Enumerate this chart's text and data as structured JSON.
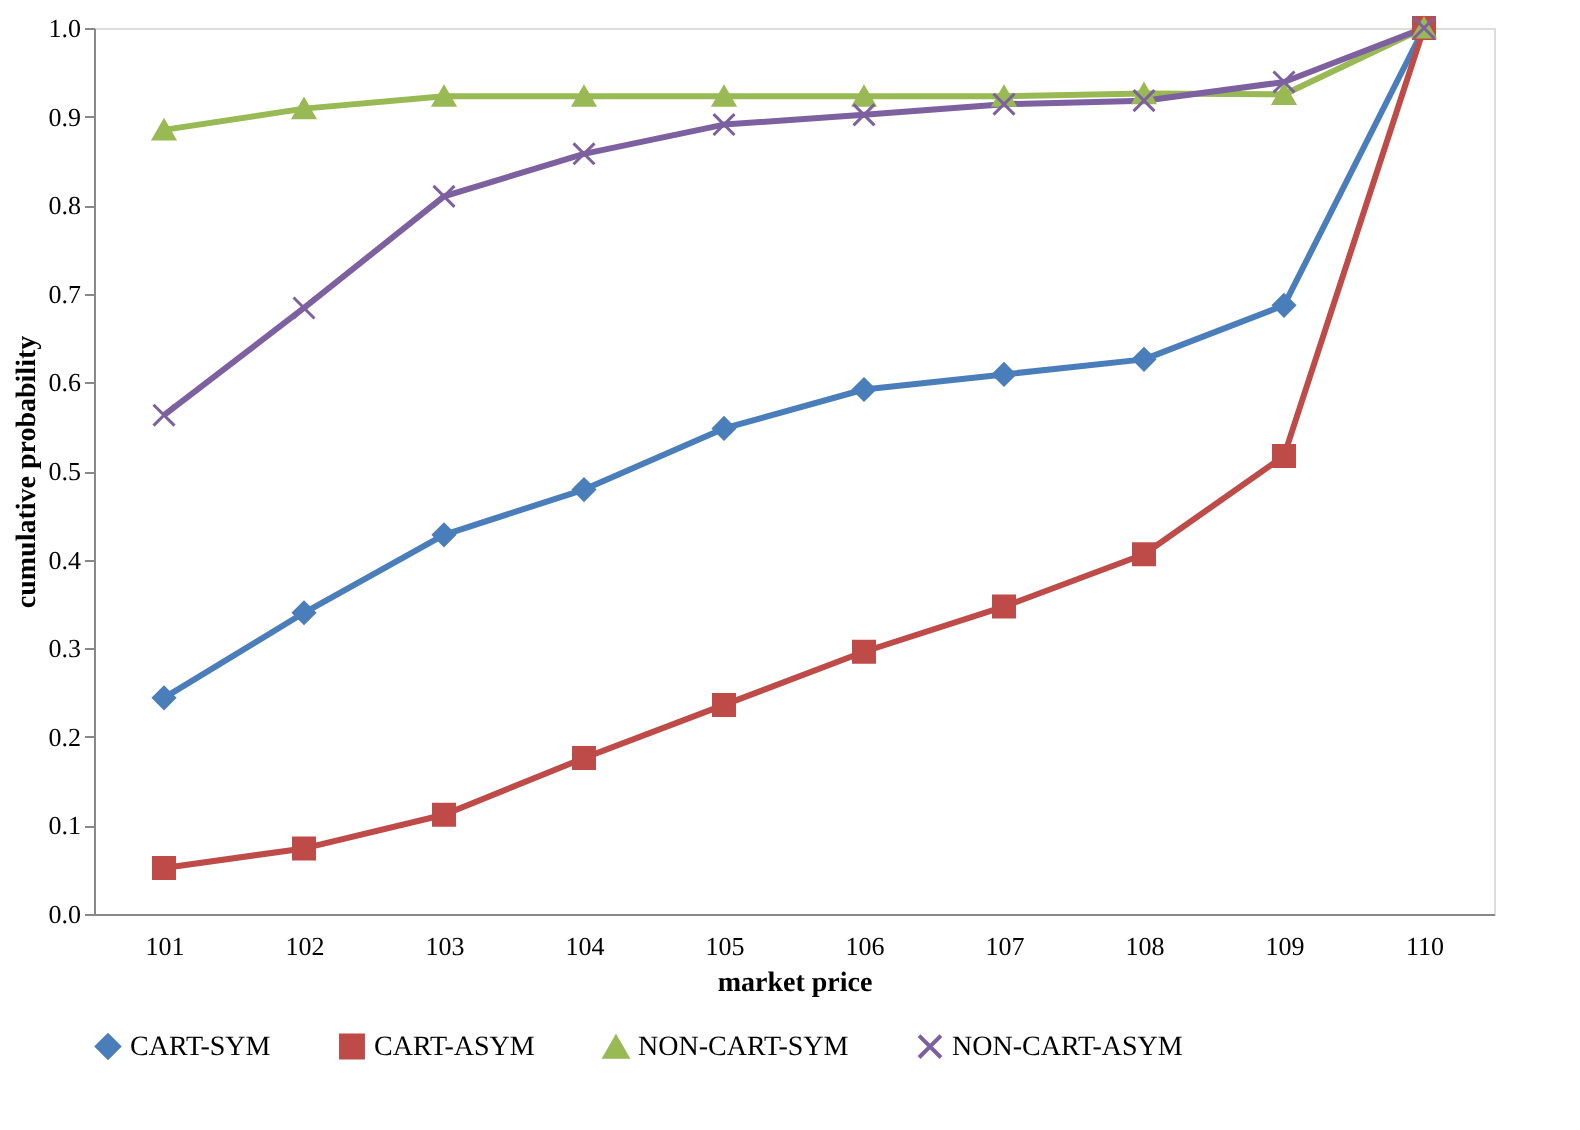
{
  "chart_data": {
    "type": "line",
    "xlabel": "market price",
    "ylabel": "cumulative probability",
    "categories": [
      "101",
      "102",
      "103",
      "104",
      "105",
      "106",
      "107",
      "108",
      "109",
      "110"
    ],
    "series": [
      {
        "name": "CART-SYM",
        "color": "#4a7ebb",
        "marker": "diamond",
        "values": [
          0.244,
          0.34,
          0.428,
          0.479,
          0.548,
          0.592,
          0.609,
          0.626,
          0.687,
          1.0
        ]
      },
      {
        "name": "CART-ASYM",
        "color": "#be4b48",
        "marker": "square",
        "values": [
          0.052,
          0.074,
          0.112,
          0.176,
          0.236,
          0.296,
          0.347,
          0.406,
          0.517,
          1.0
        ]
      },
      {
        "name": "NON-CART-SYM",
        "color": "#98b954",
        "marker": "triangle",
        "values": [
          0.885,
          0.909,
          0.923,
          0.923,
          0.923,
          0.923,
          0.923,
          0.926,
          0.925,
          1.0
        ]
      },
      {
        "name": "NON-CART-ASYM",
        "color": "#7d60a0",
        "marker": "cross",
        "values": [
          0.563,
          0.684,
          0.81,
          0.858,
          0.891,
          0.902,
          0.914,
          0.918,
          0.939,
          1.0
        ]
      }
    ],
    "ylim": [
      0,
      1
    ],
    "yticks": [
      {
        "value": 0,
        "label": "0.0"
      },
      {
        "value": 0.1,
        "label": "0.1"
      },
      {
        "value": 0.2,
        "label": "0.2"
      },
      {
        "value": 0.3,
        "label": "0.3"
      },
      {
        "value": 0.4,
        "label": "0.4"
      },
      {
        "value": 0.5,
        "label": "0.5"
      },
      {
        "value": 0.6,
        "label": "0.6"
      },
      {
        "value": 0.7,
        "label": "0.7"
      },
      {
        "value": 0.8,
        "label": "0.8"
      },
      {
        "value": 0.9,
        "label": "0.9"
      },
      {
        "value": 1,
        "label": "1.0"
      }
    ],
    "grid": false,
    "legend": "bottom",
    "line_style": "solid"
  }
}
